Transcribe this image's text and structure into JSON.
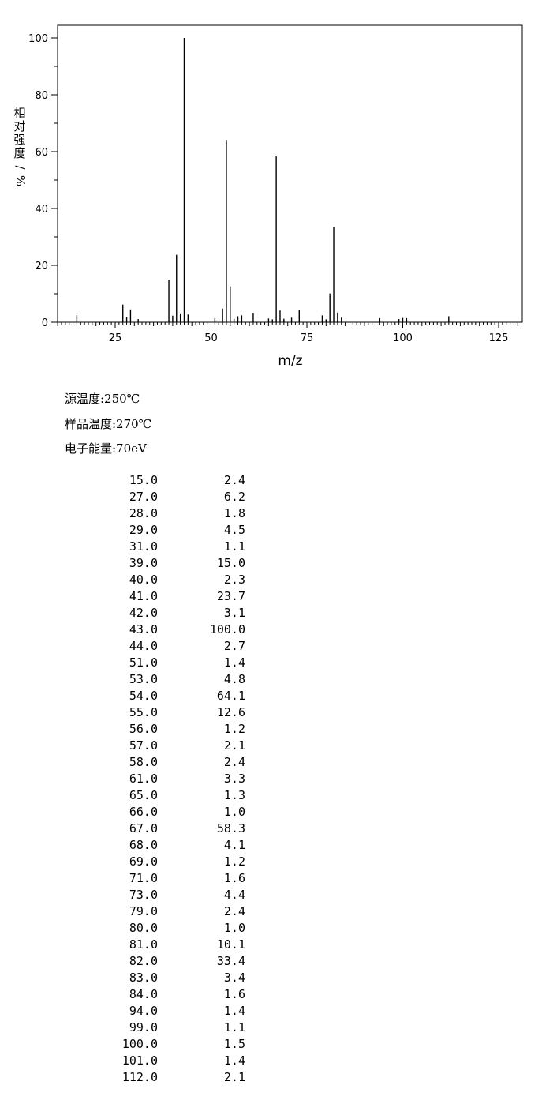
{
  "chart_data": {
    "type": "bar",
    "xlabel": "m/z",
    "ylabel": "相对强度/%",
    "xlim": [
      10,
      130
    ],
    "ylim": [
      0,
      100
    ],
    "xticks": [
      "25",
      "50",
      "75",
      "100",
      "125"
    ],
    "yticks": [
      "0",
      "20",
      "40",
      "60",
      "80",
      "100"
    ],
    "peaks": [
      {
        "mz": 15.0,
        "intensity": 2.4
      },
      {
        "mz": 27.0,
        "intensity": 6.2
      },
      {
        "mz": 28.0,
        "intensity": 1.8
      },
      {
        "mz": 29.0,
        "intensity": 4.5
      },
      {
        "mz": 31.0,
        "intensity": 1.1
      },
      {
        "mz": 39.0,
        "intensity": 15.0
      },
      {
        "mz": 40.0,
        "intensity": 2.3
      },
      {
        "mz": 41.0,
        "intensity": 23.7
      },
      {
        "mz": 42.0,
        "intensity": 3.1
      },
      {
        "mz": 43.0,
        "intensity": 100.0
      },
      {
        "mz": 44.0,
        "intensity": 2.7
      },
      {
        "mz": 51.0,
        "intensity": 1.4
      },
      {
        "mz": 53.0,
        "intensity": 4.8
      },
      {
        "mz": 54.0,
        "intensity": 64.1
      },
      {
        "mz": 55.0,
        "intensity": 12.6
      },
      {
        "mz": 56.0,
        "intensity": 1.2
      },
      {
        "mz": 57.0,
        "intensity": 2.1
      },
      {
        "mz": 58.0,
        "intensity": 2.4
      },
      {
        "mz": 61.0,
        "intensity": 3.3
      },
      {
        "mz": 65.0,
        "intensity": 1.3
      },
      {
        "mz": 66.0,
        "intensity": 1.0
      },
      {
        "mz": 67.0,
        "intensity": 58.3
      },
      {
        "mz": 68.0,
        "intensity": 4.1
      },
      {
        "mz": 69.0,
        "intensity": 1.2
      },
      {
        "mz": 71.0,
        "intensity": 1.6
      },
      {
        "mz": 73.0,
        "intensity": 4.4
      },
      {
        "mz": 79.0,
        "intensity": 2.4
      },
      {
        "mz": 80.0,
        "intensity": 1.0
      },
      {
        "mz": 81.0,
        "intensity": 10.1
      },
      {
        "mz": 82.0,
        "intensity": 33.4
      },
      {
        "mz": 83.0,
        "intensity": 3.4
      },
      {
        "mz": 84.0,
        "intensity": 1.6
      },
      {
        "mz": 94.0,
        "intensity": 1.4
      },
      {
        "mz": 99.0,
        "intensity": 1.1
      },
      {
        "mz": 100.0,
        "intensity": 1.5
      },
      {
        "mz": 101.0,
        "intensity": 1.4
      },
      {
        "mz": 112.0,
        "intensity": 2.1
      }
    ]
  },
  "conditions": {
    "source_temp": "源温度:250℃",
    "sample_temp": "样品温度:270℃",
    "electron_energy": "电子能量:70eV"
  },
  "peak_table": [
    [
      "15.0",
      "2.4"
    ],
    [
      "27.0",
      "6.2"
    ],
    [
      "28.0",
      "1.8"
    ],
    [
      "29.0",
      "4.5"
    ],
    [
      "31.0",
      "1.1"
    ],
    [
      "39.0",
      "15.0"
    ],
    [
      "40.0",
      "2.3"
    ],
    [
      "41.0",
      "23.7"
    ],
    [
      "42.0",
      "3.1"
    ],
    [
      "43.0",
      "100.0"
    ],
    [
      "44.0",
      "2.7"
    ],
    [
      "51.0",
      "1.4"
    ],
    [
      "53.0",
      "4.8"
    ],
    [
      "54.0",
      "64.1"
    ],
    [
      "55.0",
      "12.6"
    ],
    [
      "56.0",
      "1.2"
    ],
    [
      "57.0",
      "2.1"
    ],
    [
      "58.0",
      "2.4"
    ],
    [
      "61.0",
      "3.3"
    ],
    [
      "65.0",
      "1.3"
    ],
    [
      "66.0",
      "1.0"
    ],
    [
      "67.0",
      "58.3"
    ],
    [
      "68.0",
      "4.1"
    ],
    [
      "69.0",
      "1.2"
    ],
    [
      "71.0",
      "1.6"
    ],
    [
      "73.0",
      "4.4"
    ],
    [
      "79.0",
      "2.4"
    ],
    [
      "80.0",
      "1.0"
    ],
    [
      "81.0",
      "10.1"
    ],
    [
      "82.0",
      "33.4"
    ],
    [
      "83.0",
      "3.4"
    ],
    [
      "84.0",
      "1.6"
    ],
    [
      "94.0",
      "1.4"
    ],
    [
      "99.0",
      "1.1"
    ],
    [
      "100.0",
      "1.5"
    ],
    [
      "101.0",
      "1.4"
    ],
    [
      "112.0",
      "2.1"
    ]
  ]
}
